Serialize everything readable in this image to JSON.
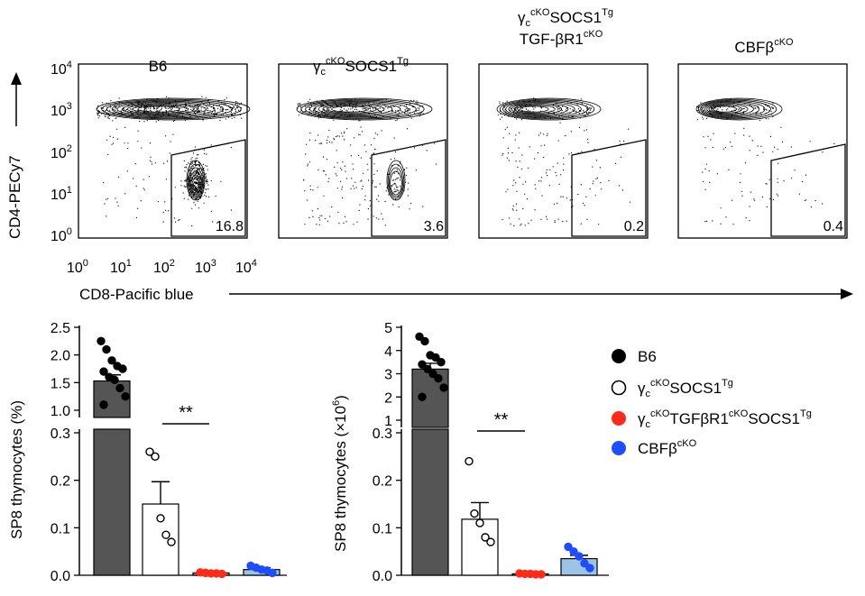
{
  "flow": {
    "panels": [
      {
        "title_line1": "",
        "title_base": "B6",
        "title_sup": "",
        "title_line2": "",
        "gate_pct": "16.8"
      },
      {
        "title_line1": "",
        "title_base": "γcSOCS1",
        "title_sub": "c",
        "title_sup": "cKO",
        "title_sup2": "Tg",
        "title_line2": "",
        "gate_pct": "3.6"
      },
      {
        "title_line1": "γcSOCS1Tg",
        "title_line2": "TGF-βR1cKO",
        "gate_pct": "0.2"
      },
      {
        "title_base": "CBFβ",
        "title_sup": "cKO",
        "gate_pct": "0.4"
      }
    ],
    "y_axis_label": "CD4-PECy7",
    "x_axis_label": "CD8-Pacific blue",
    "y_ticks": [
      "10",
      "10",
      "10",
      "10",
      "10"
    ],
    "y_tick_exps": [
      "4",
      "3",
      "2",
      "1",
      "0"
    ],
    "x_ticks": [
      "10",
      "10",
      "10",
      "10",
      "10"
    ],
    "x_tick_exps": [
      "0",
      "1",
      "2",
      "3",
      "4"
    ]
  },
  "legend": {
    "items": [
      {
        "label": "B6",
        "color": "#000000",
        "filled": true
      },
      {
        "label": "γcSOCS1Tg",
        "color": "#000000",
        "filled": false
      },
      {
        "label": "γcTGFβR1SOCS1",
        "color": "#ff2a1a",
        "filled": true
      },
      {
        "label": "CBFβ",
        "color": "#1f4dff",
        "filled": true
      }
    ]
  },
  "chart_data": [
    {
      "type": "bar",
      "ylabel": "SP8 thymocytes (%)",
      "categories": [
        "B6",
        "γcSOCS1Tg",
        "γcTGFβR1SOCS1Tg",
        "CBFβcKO"
      ],
      "values": [
        1.53,
        0.15,
        0.005,
        0.012
      ],
      "errors": [
        0.11,
        0.047,
        0.002,
        0.004
      ],
      "points": [
        [
          2.25,
          2.1,
          1.9,
          1.8,
          1.75,
          1.7,
          1.6,
          1.55,
          1.4,
          1.25,
          1.1
        ],
        [
          0.26,
          0.25,
          0.12,
          0.085,
          0.07
        ],
        [
          0.006,
          0.005,
          0.004,
          0.004,
          0.003
        ],
        [
          0.02,
          0.016,
          0.012,
          0.01,
          0.005
        ]
      ],
      "y_ticks_upper": [
        "1.0",
        "1.5",
        "2.0",
        "2.5"
      ],
      "y_ticks_lower": [
        "0.0",
        "0.1",
        "0.2",
        "0.3"
      ],
      "significance": "**"
    },
    {
      "type": "bar",
      "ylabel": "SP8 thymocytes (×10⁶)",
      "categories": [
        "B6",
        "γcSOCS1Tg",
        "γcTGFβR1SOCS1Tg",
        "CBFβcKO"
      ],
      "values": [
        3.2,
        0.118,
        0.003,
        0.035
      ],
      "errors": [
        0.25,
        0.035,
        0.001,
        0.007
      ],
      "points": [
        [
          4.6,
          4.4,
          3.8,
          3.7,
          3.5,
          3.4,
          3.2,
          3.0,
          2.8,
          2.4,
          2.0
        ],
        [
          0.24,
          0.13,
          0.11,
          0.08,
          0.07
        ],
        [
          0.004,
          0.003,
          0.003,
          0.002,
          0.002
        ],
        [
          0.06,
          0.05,
          0.04,
          0.025,
          0.015
        ]
      ],
      "y_ticks_upper": [
        "1",
        "2",
        "3",
        "4",
        "5"
      ],
      "y_ticks_lower": [
        "0.0",
        "0.1",
        "0.2",
        "0.3"
      ],
      "significance": "**"
    }
  ]
}
